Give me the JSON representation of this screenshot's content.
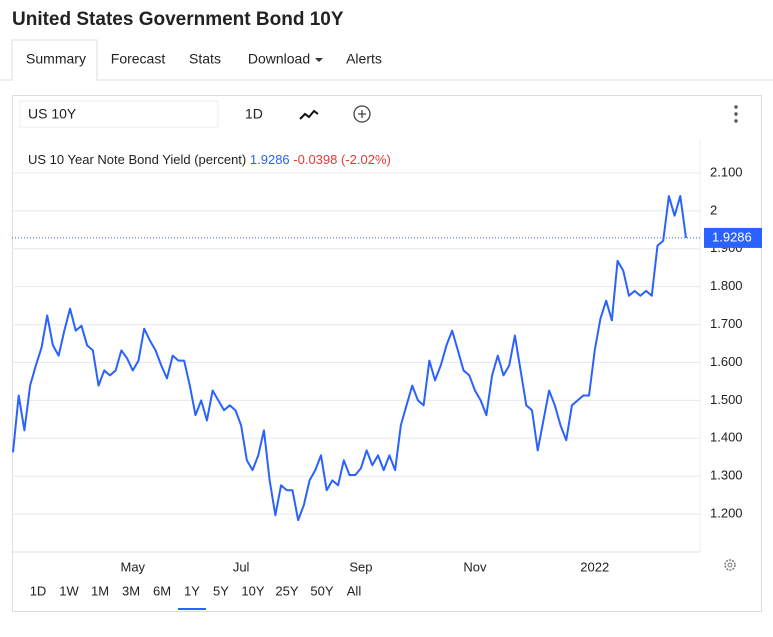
{
  "header": {
    "title": "United States Government Bond 10Y"
  },
  "tabs": [
    "Summary",
    "Forecast",
    "Stats",
    "Download",
    "Alerts"
  ],
  "toolbar": {
    "symbol": "US 10Y",
    "interval": "1D"
  },
  "chart_data": {
    "type": "line",
    "categories": [
      null,
      null,
      null,
      null,
      null,
      null,
      null,
      null,
      null,
      null,
      null,
      null,
      null,
      null,
      null,
      null,
      null,
      null,
      null,
      null,
      null,
      "May",
      null,
      null,
      null,
      null,
      null,
      null,
      null,
      null,
      null,
      null,
      null,
      null,
      null,
      null,
      null,
      null,
      null,
      null,
      "Jul",
      null,
      null,
      null,
      null,
      null,
      null,
      null,
      null,
      null,
      null,
      null,
      null,
      null,
      null,
      null,
      null,
      null,
      null,
      null,
      null,
      "Sep",
      null,
      null,
      null,
      null,
      null,
      null,
      null,
      null,
      null,
      null,
      null,
      null,
      null,
      null,
      null,
      null,
      null,
      null,
      null,
      "Nov",
      null,
      null,
      null,
      null,
      null,
      null,
      null,
      null,
      null,
      null,
      null,
      null,
      null,
      null,
      null,
      null,
      null,
      null,
      null,
      null,
      "2022",
      null,
      null,
      null,
      null,
      null,
      null,
      null,
      null,
      null,
      null,
      null,
      null,
      null,
      null,
      null,
      null
    ],
    "series": [
      {
        "name": "US 10 Year Note Bond Yield (percent)",
        "color": "#2962ff",
        "values": [
          1.363,
          1.513,
          1.421,
          1.539,
          1.592,
          1.639,
          1.724,
          1.645,
          1.618,
          1.684,
          1.742,
          1.684,
          1.697,
          1.645,
          1.632,
          1.539,
          1.579,
          1.566,
          1.579,
          1.632,
          1.611,
          1.579,
          1.605,
          1.689,
          1.658,
          1.632,
          1.592,
          1.558,
          1.618,
          1.605,
          1.605,
          1.539,
          1.461,
          1.5,
          1.447,
          1.526,
          1.5,
          1.474,
          1.487,
          1.474,
          1.434,
          1.342,
          1.316,
          1.355,
          1.421,
          1.289,
          1.197,
          1.276,
          1.263,
          1.263,
          1.184,
          1.224,
          1.289,
          1.316,
          1.355,
          1.263,
          1.289,
          1.276,
          1.342,
          1.303,
          1.303,
          1.321,
          1.368,
          1.329,
          1.355,
          1.316,
          1.355,
          1.316,
          1.434,
          1.487,
          1.539,
          1.5,
          1.487,
          1.605,
          1.553,
          1.592,
          1.645,
          1.684,
          1.632,
          1.579,
          1.566,
          1.526,
          1.5,
          1.461,
          1.566,
          1.618,
          1.566,
          1.592,
          1.671,
          1.579,
          1.487,
          1.474,
          1.368,
          1.447,
          1.526,
          1.487,
          1.434,
          1.395,
          1.487,
          1.5,
          1.513,
          1.513,
          1.632,
          1.716,
          1.763,
          1.711,
          1.868,
          1.842,
          1.776,
          1.789,
          1.776,
          1.789,
          1.776,
          1.908,
          1.921,
          2.039,
          1.987,
          2.039,
          1.9286
        ]
      }
    ],
    "change": "-0.0398 (-2.02%)",
    "ylim": [
      1.1,
      2.15
    ],
    "yticks": [
      {
        "value": 2.1,
        "label": "2.100"
      },
      2,
      {
        "value": 1.9,
        "label": "1.900"
      },
      {
        "value": 1.8,
        "label": "1.800"
      },
      {
        "value": 1.7,
        "label": "1.700"
      },
      {
        "value": 1.6,
        "label": "1.600"
      },
      {
        "value": 1.5,
        "label": "1.500"
      },
      {
        "value": 1.4,
        "label": "1.400"
      },
      {
        "value": 1.3,
        "label": "1.300"
      },
      {
        "value": 1.2,
        "label": "1.200"
      }
    ],
    "grid": true
  },
  "ranges": [
    "1D",
    "1W",
    "1M",
    "3M",
    "6M",
    "1Y",
    "5Y",
    "10Y",
    "25Y",
    "50Y",
    "All"
  ]
}
